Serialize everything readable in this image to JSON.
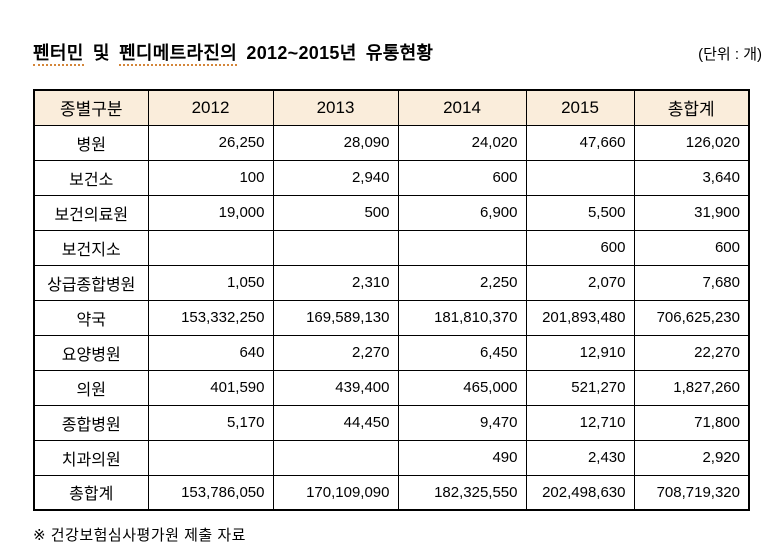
{
  "title": {
    "word1": "펜터민",
    "conj": " 및 ",
    "word2": "펜디메트라진의",
    "rest": " 2012~2015년 유통현황"
  },
  "unit_label": "(단위 : 개)",
  "table": {
    "headers": [
      "종별구분",
      "2012",
      "2013",
      "2014",
      "2015",
      "총합계"
    ],
    "rows": [
      {
        "label": "병원",
        "values": [
          "26,250",
          "28,090",
          "24,020",
          "47,660",
          "126,020"
        ]
      },
      {
        "label": "보건소",
        "values": [
          "100",
          "2,940",
          "600",
          "",
          "3,640"
        ]
      },
      {
        "label": "보건의료원",
        "values": [
          "19,000",
          "500",
          "6,900",
          "5,500",
          "31,900"
        ]
      },
      {
        "label": "보건지소",
        "values": [
          "",
          "",
          "",
          "600",
          "600"
        ]
      },
      {
        "label": "상급종합병원",
        "values": [
          "1,050",
          "2,310",
          "2,250",
          "2,070",
          "7,680"
        ]
      },
      {
        "label": "약국",
        "values": [
          "153,332,250",
          "169,589,130",
          "181,810,370",
          "201,893,480",
          "706,625,230"
        ]
      },
      {
        "label": "요양병원",
        "values": [
          "640",
          "2,270",
          "6,450",
          "12,910",
          "22,270"
        ]
      },
      {
        "label": "의원",
        "values": [
          "401,590",
          "439,400",
          "465,000",
          "521,270",
          "1,827,260"
        ]
      },
      {
        "label": "종합병원",
        "values": [
          "5,170",
          "44,450",
          "9,470",
          "12,710",
          "71,800"
        ]
      },
      {
        "label": "치과의원",
        "values": [
          "",
          "",
          "490",
          "2,430",
          "2,920"
        ]
      },
      {
        "label": "총합계",
        "values": [
          "153,786,050",
          "170,109,090",
          "182,325,550",
          "202,498,630",
          "708,719,320"
        ]
      }
    ]
  },
  "footnote": "※ 건강보험심사평가원 제출 자료",
  "colors": {
    "header_bg": "#faeddb",
    "border": "#000000",
    "squiggle_underline": "#d4863a",
    "text": "#000000"
  }
}
